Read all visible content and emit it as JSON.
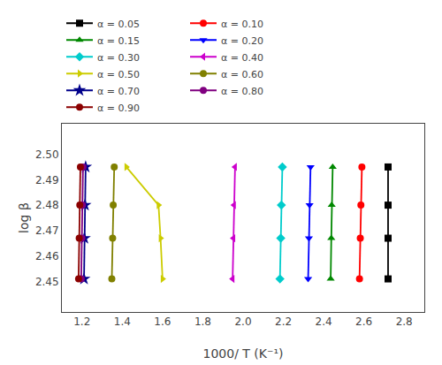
{
  "chart_data": {
    "type": "line",
    "xlabel": "1000/ T (K⁻¹)",
    "ylabel": "log β",
    "xlim": [
      1.1,
      2.9
    ],
    "ylim": [
      2.438,
      2.512
    ],
    "xticks": [
      1.2,
      1.4,
      1.6,
      1.8,
      {
        "value": 2.0,
        "label": "2.0"
      },
      2.2,
      2.4,
      2.6,
      2.8
    ],
    "yticks": [
      2.45,
      2.46,
      2.47,
      2.48,
      2.49,
      {
        "value": 2.5,
        "label": "2.50"
      }
    ],
    "grid": false,
    "legend": "top",
    "series": [
      {
        "name": "α = 0.05",
        "color": "#000000",
        "marker": "square",
        "x": [
          2.72,
          2.72,
          2.72,
          2.72
        ],
        "values": [
          2.495,
          2.48,
          2.467,
          2.451
        ]
      },
      {
        "name": "α = 0.10",
        "color": "#ff0000",
        "marker": "circle",
        "x": [
          2.59,
          2.585,
          2.582,
          2.578
        ],
        "values": [
          2.495,
          2.48,
          2.467,
          2.451
        ]
      },
      {
        "name": "α = 0.15",
        "color": "#008800",
        "marker": "triangle-up",
        "x": [
          2.445,
          2.44,
          2.438,
          2.435
        ],
        "values": [
          2.495,
          2.48,
          2.467,
          2.451
        ]
      },
      {
        "name": "α = 0.20",
        "color": "#0000ff",
        "marker": "triangle-down",
        "x": [
          2.335,
          2.33,
          2.327,
          2.323
        ],
        "values": [
          2.495,
          2.48,
          2.467,
          2.451
        ]
      },
      {
        "name": "α = 0.30",
        "color": "#00cccc",
        "marker": "diamond",
        "x": [
          2.195,
          2.19,
          2.187,
          2.183
        ],
        "values": [
          2.495,
          2.48,
          2.467,
          2.451
        ]
      },
      {
        "name": "α = 0.40",
        "color": "#cc00cc",
        "marker": "triangle-left",
        "x": [
          1.96,
          1.955,
          1.952,
          1.948
        ],
        "values": [
          2.495,
          2.48,
          2.467,
          2.451
        ]
      },
      {
        "name": "α = 0.50",
        "color": "#cccc00",
        "marker": "triangle-right",
        "x": [
          1.42,
          1.58,
          1.59,
          1.6
        ],
        "values": [
          2.495,
          2.48,
          2.467,
          2.451
        ]
      },
      {
        "name": "α = 0.60",
        "color": "#808000",
        "marker": "circle",
        "x": [
          1.36,
          1.355,
          1.352,
          1.348
        ],
        "values": [
          2.495,
          2.48,
          2.467,
          2.451
        ]
      },
      {
        "name": "α = 0.70",
        "color": "#00008b",
        "marker": "star",
        "x": [
          1.218,
          1.215,
          1.212,
          1.21
        ],
        "values": [
          2.495,
          2.48,
          2.467,
          2.451
        ]
      },
      {
        "name": "α = 0.80",
        "color": "#800080",
        "marker": "circle",
        "x": [
          1.205,
          1.202,
          1.199,
          1.196
        ],
        "values": [
          2.495,
          2.48,
          2.467,
          2.451
        ]
      },
      {
        "name": "α = 0.90",
        "color": "#8b0000",
        "marker": "circle",
        "x": [
          1.192,
          1.189,
          1.186,
          1.183
        ],
        "values": [
          2.495,
          2.48,
          2.467,
          2.451
        ]
      }
    ]
  }
}
